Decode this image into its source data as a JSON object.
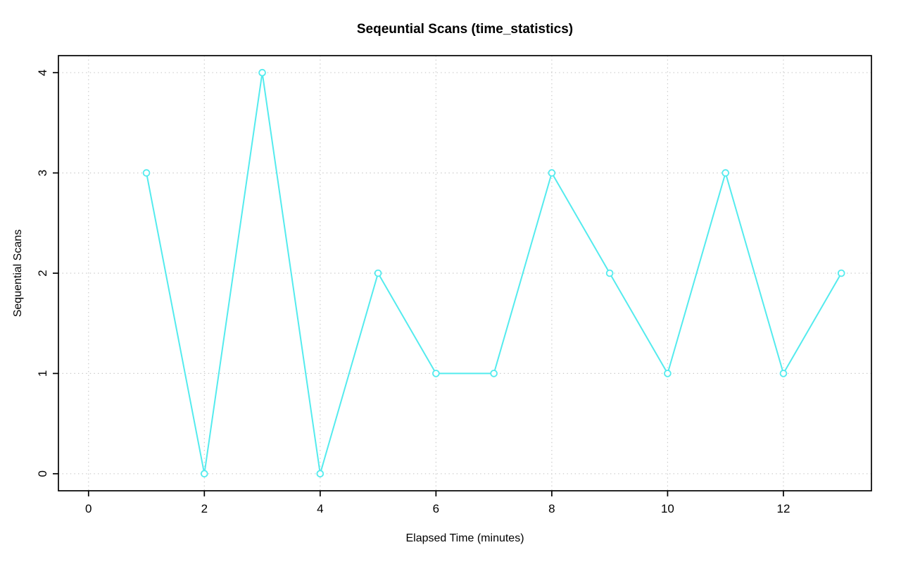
{
  "chart_data": {
    "type": "line",
    "title": "Seqeuntial Scans (time_statistics)",
    "xlabel": "Elapsed Time (minutes)",
    "ylabel": "Sequential Scans",
    "x": [
      1,
      2,
      3,
      4,
      5,
      6,
      7,
      8,
      9,
      10,
      11,
      12,
      13
    ],
    "values": [
      3,
      0,
      4,
      0,
      2,
      1,
      1,
      3,
      2,
      1,
      3,
      1,
      2
    ],
    "xticks": [
      0,
      2,
      4,
      6,
      8,
      10,
      12
    ],
    "yticks": [
      0,
      1,
      2,
      3,
      4
    ],
    "xlim": [
      -0.52,
      13.52
    ],
    "ylim": [
      -0.17,
      4.17
    ],
    "grid": "dotted",
    "grid_color": "#c9c9c9",
    "line_color": "#54ebee",
    "marker": "open-circle",
    "axis_color": "#000000",
    "background": "#ffffff",
    "legend": "none"
  }
}
